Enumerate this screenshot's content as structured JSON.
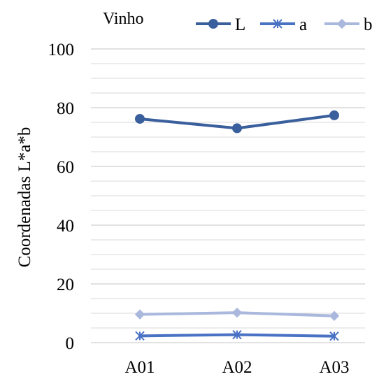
{
  "chart_data": {
    "type": "line",
    "title": "Vinho",
    "xlabel": "",
    "ylabel": "Coordenadas L*a*b",
    "categories": [
      "A01",
      "A02",
      "A03"
    ],
    "ylim": [
      0,
      100
    ],
    "yticks": [
      0,
      20,
      40,
      60,
      80,
      100
    ],
    "grid": true,
    "legend_position": "top-right",
    "series": [
      {
        "name": "L",
        "values": [
          76.2,
          73.0,
          77.4
        ],
        "color": "#3a5f9d",
        "marker": "circle"
      },
      {
        "name": "a",
        "values": [
          2.3,
          2.7,
          2.2
        ],
        "color": "#4a72c4",
        "marker": "asterisk"
      },
      {
        "name": "b",
        "values": [
          9.6,
          10.2,
          9.1
        ],
        "color": "#a9b8dc",
        "marker": "diamond"
      }
    ]
  }
}
